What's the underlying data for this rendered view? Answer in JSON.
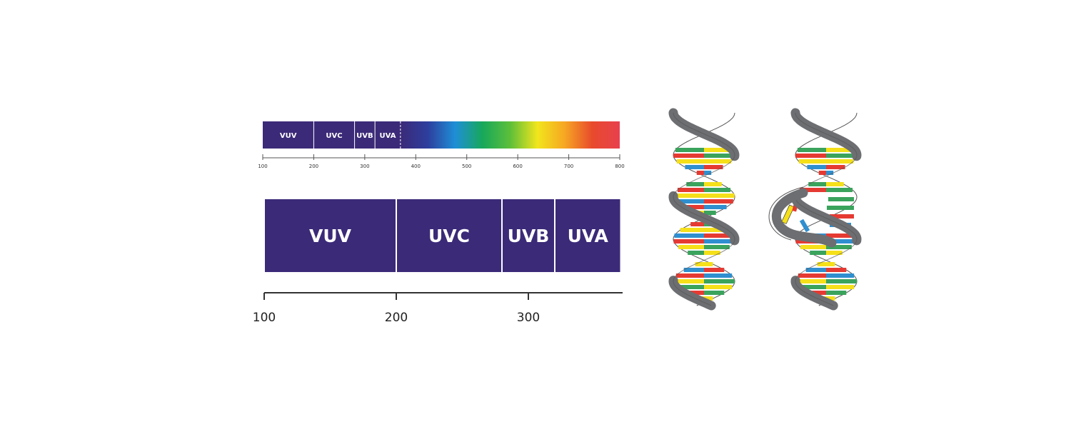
{
  "spectrum_bar": {
    "bands": [
      {
        "label": "VUV",
        "from": 100,
        "to": 200
      },
      {
        "label": "UVC",
        "from": 200,
        "to": 280
      },
      {
        "label": "UVB",
        "from": 280,
        "to": 320
      },
      {
        "label": "UVA",
        "from": 320,
        "to": 370
      }
    ],
    "divider_dashed_at": 370,
    "ticks": [
      "100",
      "200",
      "300",
      "400",
      "500",
      "600",
      "700",
      "800"
    ],
    "range": [
      100,
      800
    ],
    "band_color": "#3b2a78",
    "visible_gradient": [
      "#3b2a78",
      "#2d3e9e",
      "#1f8fd6",
      "#17a85a",
      "#5dbf3a",
      "#f2e51c",
      "#f6a623",
      "#e84a2c",
      "#e8404e"
    ]
  },
  "zoom_bar": {
    "bands": [
      {
        "label": "VUV",
        "from": 100,
        "to": 200
      },
      {
        "label": "UVC",
        "from": 200,
        "to": 280
      },
      {
        "label": "UVB",
        "from": 280,
        "to": 320
      },
      {
        "label": "UVA",
        "from": 320,
        "to": 370
      }
    ],
    "ticks": [
      "100",
      "200",
      "300"
    ],
    "range": [
      100,
      370
    ],
    "band_color": "#3b2a78"
  },
  "dna": {
    "colors": {
      "backbone": "#6d6e71",
      "yellow": "#f5e01a",
      "green": "#3aa35c",
      "red": "#e53a32",
      "blue": "#2f8fcf"
    },
    "left_state": "intact",
    "right_state": "damaged"
  }
}
